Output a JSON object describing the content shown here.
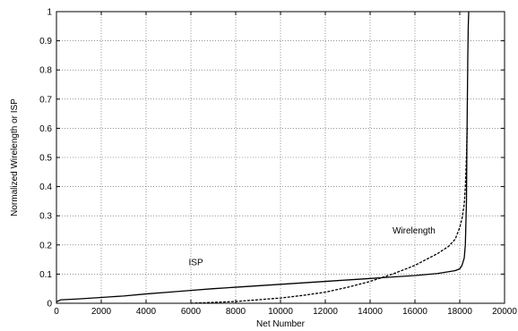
{
  "chart_data": {
    "type": "line",
    "title": "",
    "xlabel": "Net Number",
    "ylabel": "Normalized Wirelength or ISP",
    "xlim": [
      0,
      20000
    ],
    "ylim": [
      0,
      1
    ],
    "xticks": [
      0,
      2000,
      4000,
      6000,
      8000,
      10000,
      12000,
      14000,
      16000,
      18000,
      20000
    ],
    "yticks": [
      0,
      0.1,
      0.2,
      0.3,
      0.4,
      0.5,
      0.6,
      0.7,
      0.8,
      0.9,
      1
    ],
    "grid": true,
    "legend": "none",
    "series": [
      {
        "name": "ISP",
        "style": "solid",
        "color": "#000000",
        "x": [
          0,
          200,
          1000,
          2000,
          3000,
          4000,
          5000,
          6000,
          7000,
          8000,
          9000,
          10000,
          11000,
          12000,
          13000,
          14000,
          15000,
          16000,
          17000,
          17500,
          17800,
          18000,
          18100,
          18200,
          18250,
          18300,
          18320,
          18340,
          18360,
          18380,
          18400
        ],
        "y": [
          0.005,
          0.012,
          0.015,
          0.02,
          0.025,
          0.032,
          0.038,
          0.044,
          0.05,
          0.055,
          0.06,
          0.065,
          0.07,
          0.075,
          0.08,
          0.085,
          0.09,
          0.095,
          0.102,
          0.108,
          0.112,
          0.118,
          0.13,
          0.155,
          0.2,
          0.35,
          0.55,
          0.7,
          0.85,
          0.95,
          1.0
        ]
      },
      {
        "name": "Wirelength",
        "style": "dashed",
        "color": "#000000",
        "x": [
          6000,
          7000,
          8000,
          9000,
          10000,
          11000,
          12000,
          13000,
          14000,
          15000,
          15500,
          16000,
          16500,
          17000,
          17500,
          17800,
          18000,
          18100,
          18200,
          18250,
          18300,
          18330
        ],
        "y": [
          0.0,
          0.003,
          0.006,
          0.012,
          0.018,
          0.027,
          0.038,
          0.055,
          0.075,
          0.1,
          0.115,
          0.13,
          0.15,
          0.17,
          0.195,
          0.22,
          0.26,
          0.29,
          0.34,
          0.4,
          0.5,
          0.6
        ]
      }
    ],
    "annotations": [
      {
        "text": "ISP",
        "x": 5900,
        "y": 0.13
      },
      {
        "text": "Wirelength",
        "x": 15000,
        "y": 0.24
      }
    ]
  }
}
